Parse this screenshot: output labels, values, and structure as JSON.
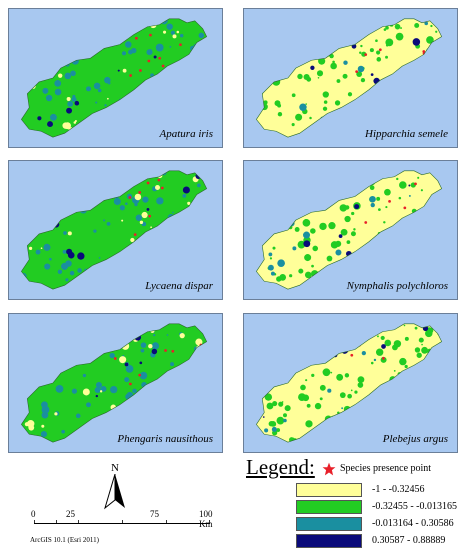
{
  "maps": [
    {
      "species": "Apatura iris",
      "variant": "green"
    },
    {
      "species": "Hipparchia semele",
      "variant": "yellow"
    },
    {
      "species": "Lycaena dispar",
      "variant": "green"
    },
    {
      "species": "Nymphalis polychloros",
      "variant": "yellow"
    },
    {
      "species": "Phengaris nausithous",
      "variant": "green"
    },
    {
      "species": "Plebejus argus",
      "variant": "yellow"
    }
  ],
  "north_label": "N",
  "scale": {
    "labels": [
      "0",
      "25",
      "75",
      "100 Km"
    ]
  },
  "legend": {
    "title": "Legend:",
    "presence": "Species presence point",
    "classes": [
      {
        "label": "-1 - -0.32456",
        "color": "#ffff99"
      },
      {
        "label": "-0.32455 - -0.013165",
        "color": "#22cc22"
      },
      {
        "label": "-0.013164 - 0.30586",
        "color": "#1a8fa0"
      },
      {
        "label": "0.30587 - 0.88889",
        "color": "#0a0a7a"
      }
    ]
  },
  "credit": "ArcGIS 10.1 (Esri 2011)",
  "colors": {
    "sea": "#a8c8f0",
    "presence": "#e8202a"
  }
}
